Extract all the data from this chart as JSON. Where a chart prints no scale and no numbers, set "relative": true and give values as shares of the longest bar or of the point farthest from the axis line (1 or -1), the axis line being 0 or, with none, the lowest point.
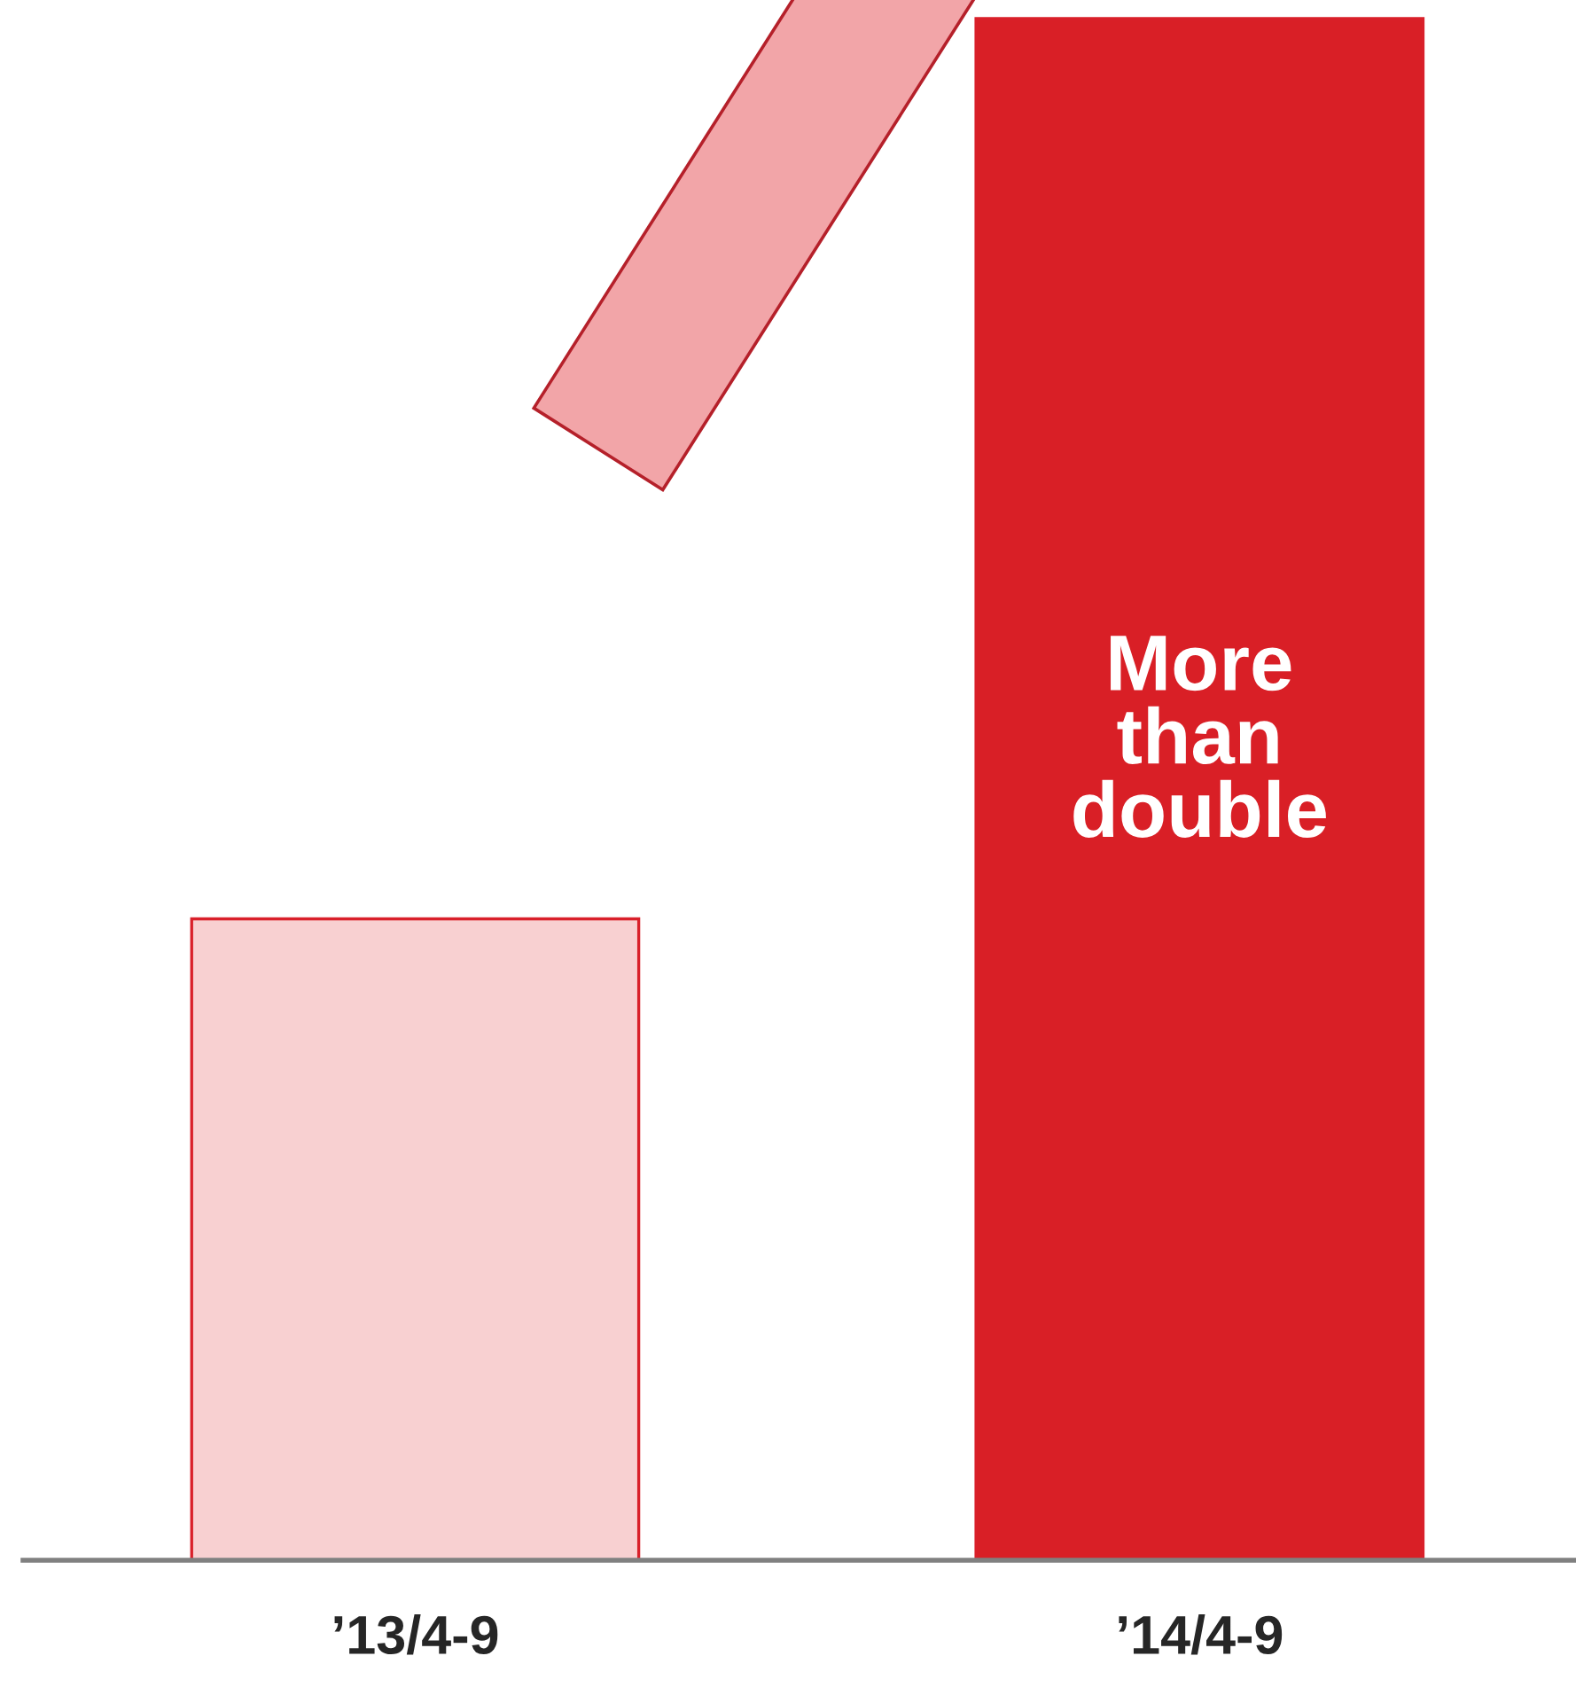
{
  "chart_data": {
    "type": "bar",
    "relative": true,
    "categories": [
      "’13/4-9",
      "’14/4-9"
    ],
    "values": [
      0.416,
      1
    ],
    "colors": [
      "#f8d0d1",
      "#d91f26"
    ],
    "annotations": [
      "More\nthan\ndouble"
    ],
    "grid": false,
    "legend": false
  }
}
